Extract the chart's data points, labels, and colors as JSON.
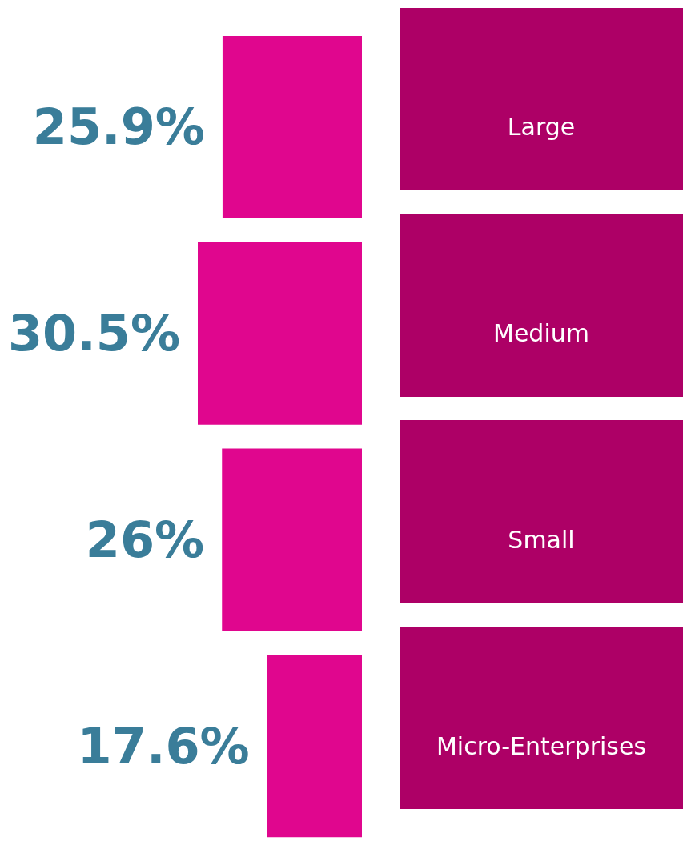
{
  "chart_data": {
    "type": "bar",
    "orientation": "horizontal",
    "categories": [
      "Large",
      "Medium",
      "Small",
      "Micro-Enterprises"
    ],
    "values": [
      25.9,
      30.5,
      26,
      17.6
    ],
    "value_labels": [
      "25.9%",
      "30.5%",
      "26%",
      "17.6%"
    ],
    "color": "#e0068e"
  }
}
